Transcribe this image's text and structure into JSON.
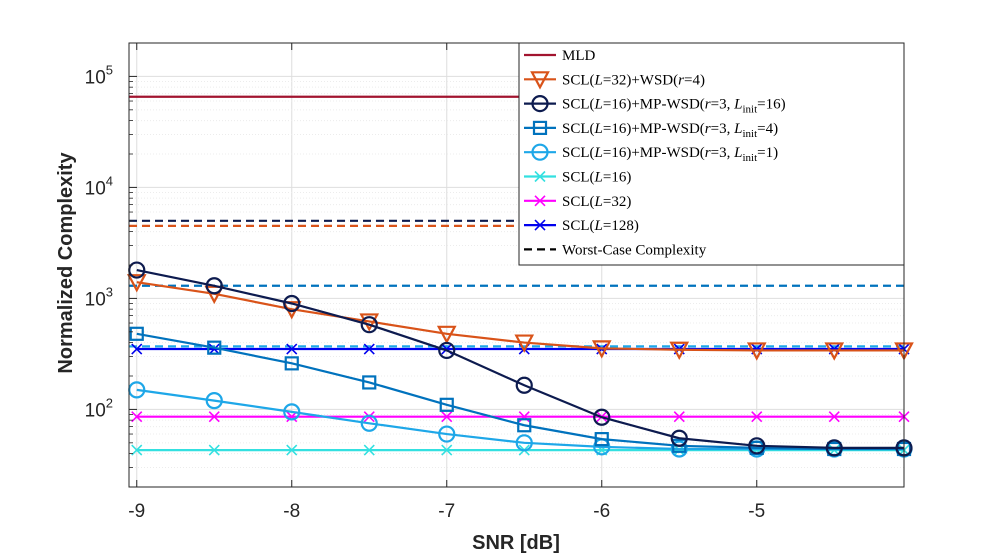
{
  "chart_data": {
    "type": "line",
    "xlabel": "SNR [dB]",
    "ylabel": "Normalized Complexity",
    "yscale": "log",
    "xlim": [
      -9.05,
      -4.05
    ],
    "ylim": [
      20,
      200000
    ],
    "x_ticks": [
      -9,
      -8,
      -7,
      -6,
      -5
    ],
    "x_tick_labels": [
      "-9",
      "-8",
      "-7",
      "-6",
      "-5"
    ],
    "y_ticks": [
      100,
      1000,
      10000,
      100000
    ],
    "y_tick_base": "10",
    "y_tick_exponents": [
      "2",
      "3",
      "4",
      "5"
    ],
    "grid": true,
    "legend_position": "top-right",
    "x": [
      -9,
      -8.5,
      -8,
      -7.5,
      -7,
      -6.5,
      -6,
      -5.5,
      -5,
      -4.5,
      -4.05
    ],
    "series": [
      {
        "name": "MLD",
        "legend_text": "MLD",
        "color": "#a2142f",
        "marker": "none",
        "line": "solid",
        "x": [
          -9.05,
          -4.05
        ],
        "values": [
          65536,
          65536
        ]
      },
      {
        "name": "SCL(L=32)+WSD(r=4)",
        "legend_text": "SCL(L=32)+WSD(r=4)",
        "color": "#d95319",
        "marker": "triangle-down",
        "line": "solid",
        "values": [
          1400,
          1100,
          800,
          620,
          480,
          400,
          355,
          345,
          340,
          340,
          340
        ]
      },
      {
        "name": "SCL(L=16)+MP-WSD(r=3, Linit=16)",
        "legend_text": "SCL(L=16)+MP-WSD(r=3, Linit=16)",
        "color": "#0d1b4f",
        "marker": "circle",
        "line": "solid",
        "values": [
          1800,
          1300,
          900,
          580,
          340,
          165,
          85,
          55,
          47,
          45,
          45
        ]
      },
      {
        "name": "SCL(L=16)+MP-WSD(r=3, Linit=4)",
        "legend_text": "SCL(L=16)+MP-WSD(r=3, Linit=4)",
        "color": "#0072bd",
        "marker": "square",
        "line": "solid",
        "values": [
          480,
          360,
          260,
          175,
          110,
          72,
          54,
          47,
          45,
          44,
          44
        ]
      },
      {
        "name": "SCL(L=16)+MP-WSD(r=3, Linit=1)",
        "legend_text": "SCL(L=16)+MP-WSD(r=3, Linit=1)",
        "color": "#1ea7e8",
        "marker": "circle",
        "line": "solid",
        "values": [
          150,
          120,
          95,
          75,
          60,
          50,
          46,
          44,
          44,
          44,
          44
        ]
      },
      {
        "name": "SCL(L=16)",
        "legend_text": "SCL(L=16)",
        "color": "#33e0e0",
        "marker": "x",
        "line": "solid",
        "values": [
          43,
          43,
          43,
          43,
          43,
          43,
          43,
          43,
          43,
          43,
          43
        ]
      },
      {
        "name": "SCL(L=32)",
        "legend_text": "SCL(L=32)",
        "color": "#ff00ff",
        "marker": "x",
        "line": "solid",
        "values": [
          86,
          86,
          86,
          86,
          86,
          86,
          86,
          86,
          86,
          86,
          86
        ]
      },
      {
        "name": "SCL(L=128)",
        "legend_text": "SCL(L=128)",
        "color": "#0000ee",
        "marker": "x",
        "line": "solid",
        "values": [
          350,
          350,
          350,
          350,
          350,
          350,
          350,
          350,
          350,
          350,
          350
        ]
      }
    ],
    "worst_case_lines": [
      {
        "name": "worst-case SCL(L=16)+MP-WSD(r=3, Linit=16)",
        "color": "#0d1b4f",
        "value": 5000
      },
      {
        "name": "worst-case SCL(L=32)+WSD(r=4)",
        "color": "#d95319",
        "value": 4500
      },
      {
        "name": "worst-case SCL(L=16)+MP-WSD(r=3, Linit=4)",
        "color": "#0072bd",
        "value": 1300
      },
      {
        "name": "worst-case SCL(L=16)+MP-WSD(r=3, Linit=1)",
        "color": "#1ea7e8",
        "value": 370
      }
    ],
    "worst_case_legend": {
      "text": "Worst-Case Complexity",
      "color": "#000000",
      "line": "dashed"
    }
  }
}
